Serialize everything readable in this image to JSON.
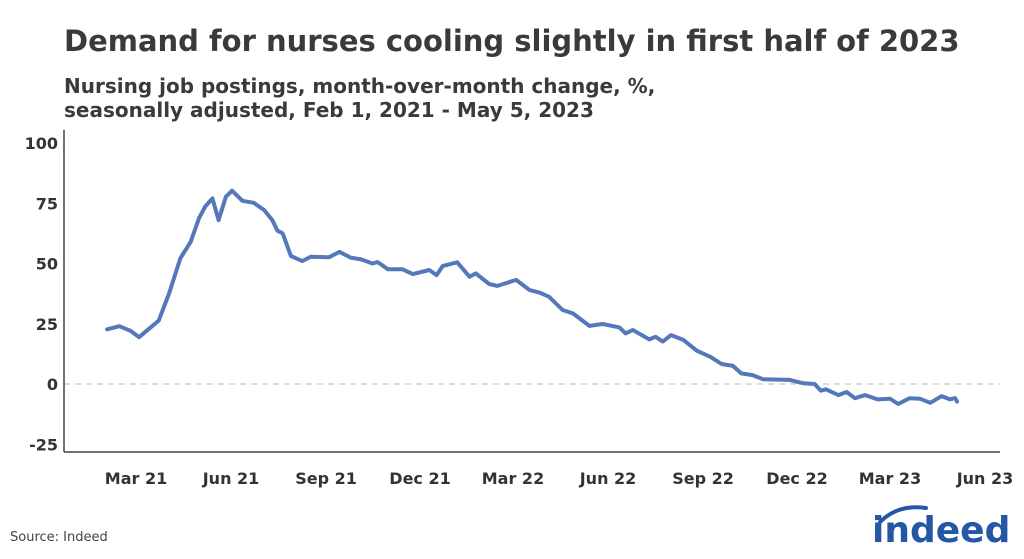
{
  "title": "Demand for nurses cooling slightly in first half of 2023",
  "subtitle_line1": "Nursing job postings, month-over-month change, %,",
  "subtitle_line2": "seasonally adjusted, Feb 1, 2021 - May 5, 2023",
  "source": "Source: Indeed",
  "logo_text": "indeed",
  "colors": {
    "line": "#5578ba",
    "zero_line": "#bbbbbb",
    "axis": "#444444",
    "logo": "#2557a7"
  },
  "chart_data": {
    "type": "line",
    "title": "Demand for nurses cooling slightly in first half of 2023",
    "xlabel": "",
    "ylabel": "",
    "ylim": [
      -25,
      100
    ],
    "yticks": [
      100,
      75,
      50,
      25,
      0,
      -25
    ],
    "xticks": [
      {
        "date": "2021-03-01",
        "label": "Mar 21"
      },
      {
        "date": "2021-06-01",
        "label": "Jun 21"
      },
      {
        "date": "2021-09-01",
        "label": "Sep 21"
      },
      {
        "date": "2021-12-01",
        "label": "Dec 21"
      },
      {
        "date": "2022-03-01",
        "label": "Mar 22"
      },
      {
        "date": "2022-06-01",
        "label": "Jun 22"
      },
      {
        "date": "2022-09-01",
        "label": "Sep 22"
      },
      {
        "date": "2022-12-01",
        "label": "Dec 22"
      },
      {
        "date": "2023-03-01",
        "label": "Mar 23"
      },
      {
        "date": "2023-06-01",
        "label": "Jun 23"
      }
    ],
    "reference_line": 0,
    "grid": false,
    "legend": "none",
    "series": [
      {
        "x": [
          "2021-02-01",
          "2021-02-13",
          "2021-02-24",
          "2021-03-04",
          "2021-03-13",
          "2021-03-23",
          "2021-04-02",
          "2021-04-13",
          "2021-04-23",
          "2021-05-01",
          "2021-05-07",
          "2021-05-14",
          "2021-05-20",
          "2021-05-27",
          "2021-06-02",
          "2021-06-12",
          "2021-06-23",
          "2021-07-03",
          "2021-07-11",
          "2021-07-16",
          "2021-07-21",
          "2021-07-29",
          "2021-08-09",
          "2021-08-17",
          "2021-09-04",
          "2021-09-14",
          "2021-09-25",
          "2021-10-05",
          "2021-10-16",
          "2021-10-21",
          "2021-10-31",
          "2021-11-14",
          "2021-11-24",
          "2021-12-10",
          "2021-12-17",
          "2021-12-23",
          "2022-01-06",
          "2022-01-18",
          "2022-01-24",
          "2022-02-06",
          "2022-02-14",
          "2022-03-04",
          "2022-03-17",
          "2022-03-27",
          "2022-04-05",
          "2022-04-18",
          "2022-04-28",
          "2022-05-14",
          "2022-05-27",
          "2022-06-12",
          "2022-06-18",
          "2022-06-25",
          "2022-07-11",
          "2022-07-17",
          "2022-07-24",
          "2022-08-01",
          "2022-08-13",
          "2022-08-26",
          "2022-09-08",
          "2022-09-19",
          "2022-09-30",
          "2022-10-08",
          "2022-10-19",
          "2022-10-29",
          "2022-11-24",
          "2022-12-07",
          "2022-12-18",
          "2022-12-24",
          "2022-12-29",
          "2023-01-10",
          "2023-01-18",
          "2023-01-26",
          "2023-02-05",
          "2023-02-17",
          "2023-03-01",
          "2023-03-09",
          "2023-03-20",
          "2023-03-30",
          "2023-04-09",
          "2023-04-20",
          "2023-04-28",
          "2023-05-03",
          "2023-05-05"
        ],
        "y": [
          22.7,
          24,
          22,
          19.4,
          22.7,
          26.3,
          37.6,
          52.2,
          59,
          68.8,
          73.6,
          77,
          68,
          77.7,
          80.2,
          76,
          75.2,
          72.2,
          68,
          63.6,
          62.5,
          53.1,
          51,
          52.8,
          52.6,
          54.8,
          52.4,
          51.7,
          50,
          50.6,
          47.6,
          47.6,
          45.6,
          47.3,
          45.2,
          49,
          50.5,
          44.5,
          45.9,
          41.5,
          40.7,
          43.2,
          39,
          37.9,
          36.2,
          30.7,
          29.3,
          24.1,
          24.9,
          23.5,
          21,
          22.4,
          18.5,
          19.6,
          17.6,
          20.3,
          18.3,
          13.8,
          11.3,
          8.3,
          7.5,
          4.4,
          3.7,
          2,
          1.7,
          0.3,
          0,
          -2.8,
          -2.2,
          -4.6,
          -3.3,
          -5.9,
          -4.6,
          -6.4,
          -6.1,
          -8.3,
          -5.9,
          -6.1,
          -7.8,
          -5,
          -6.4,
          -5.8,
          -7.3
        ]
      }
    ]
  }
}
